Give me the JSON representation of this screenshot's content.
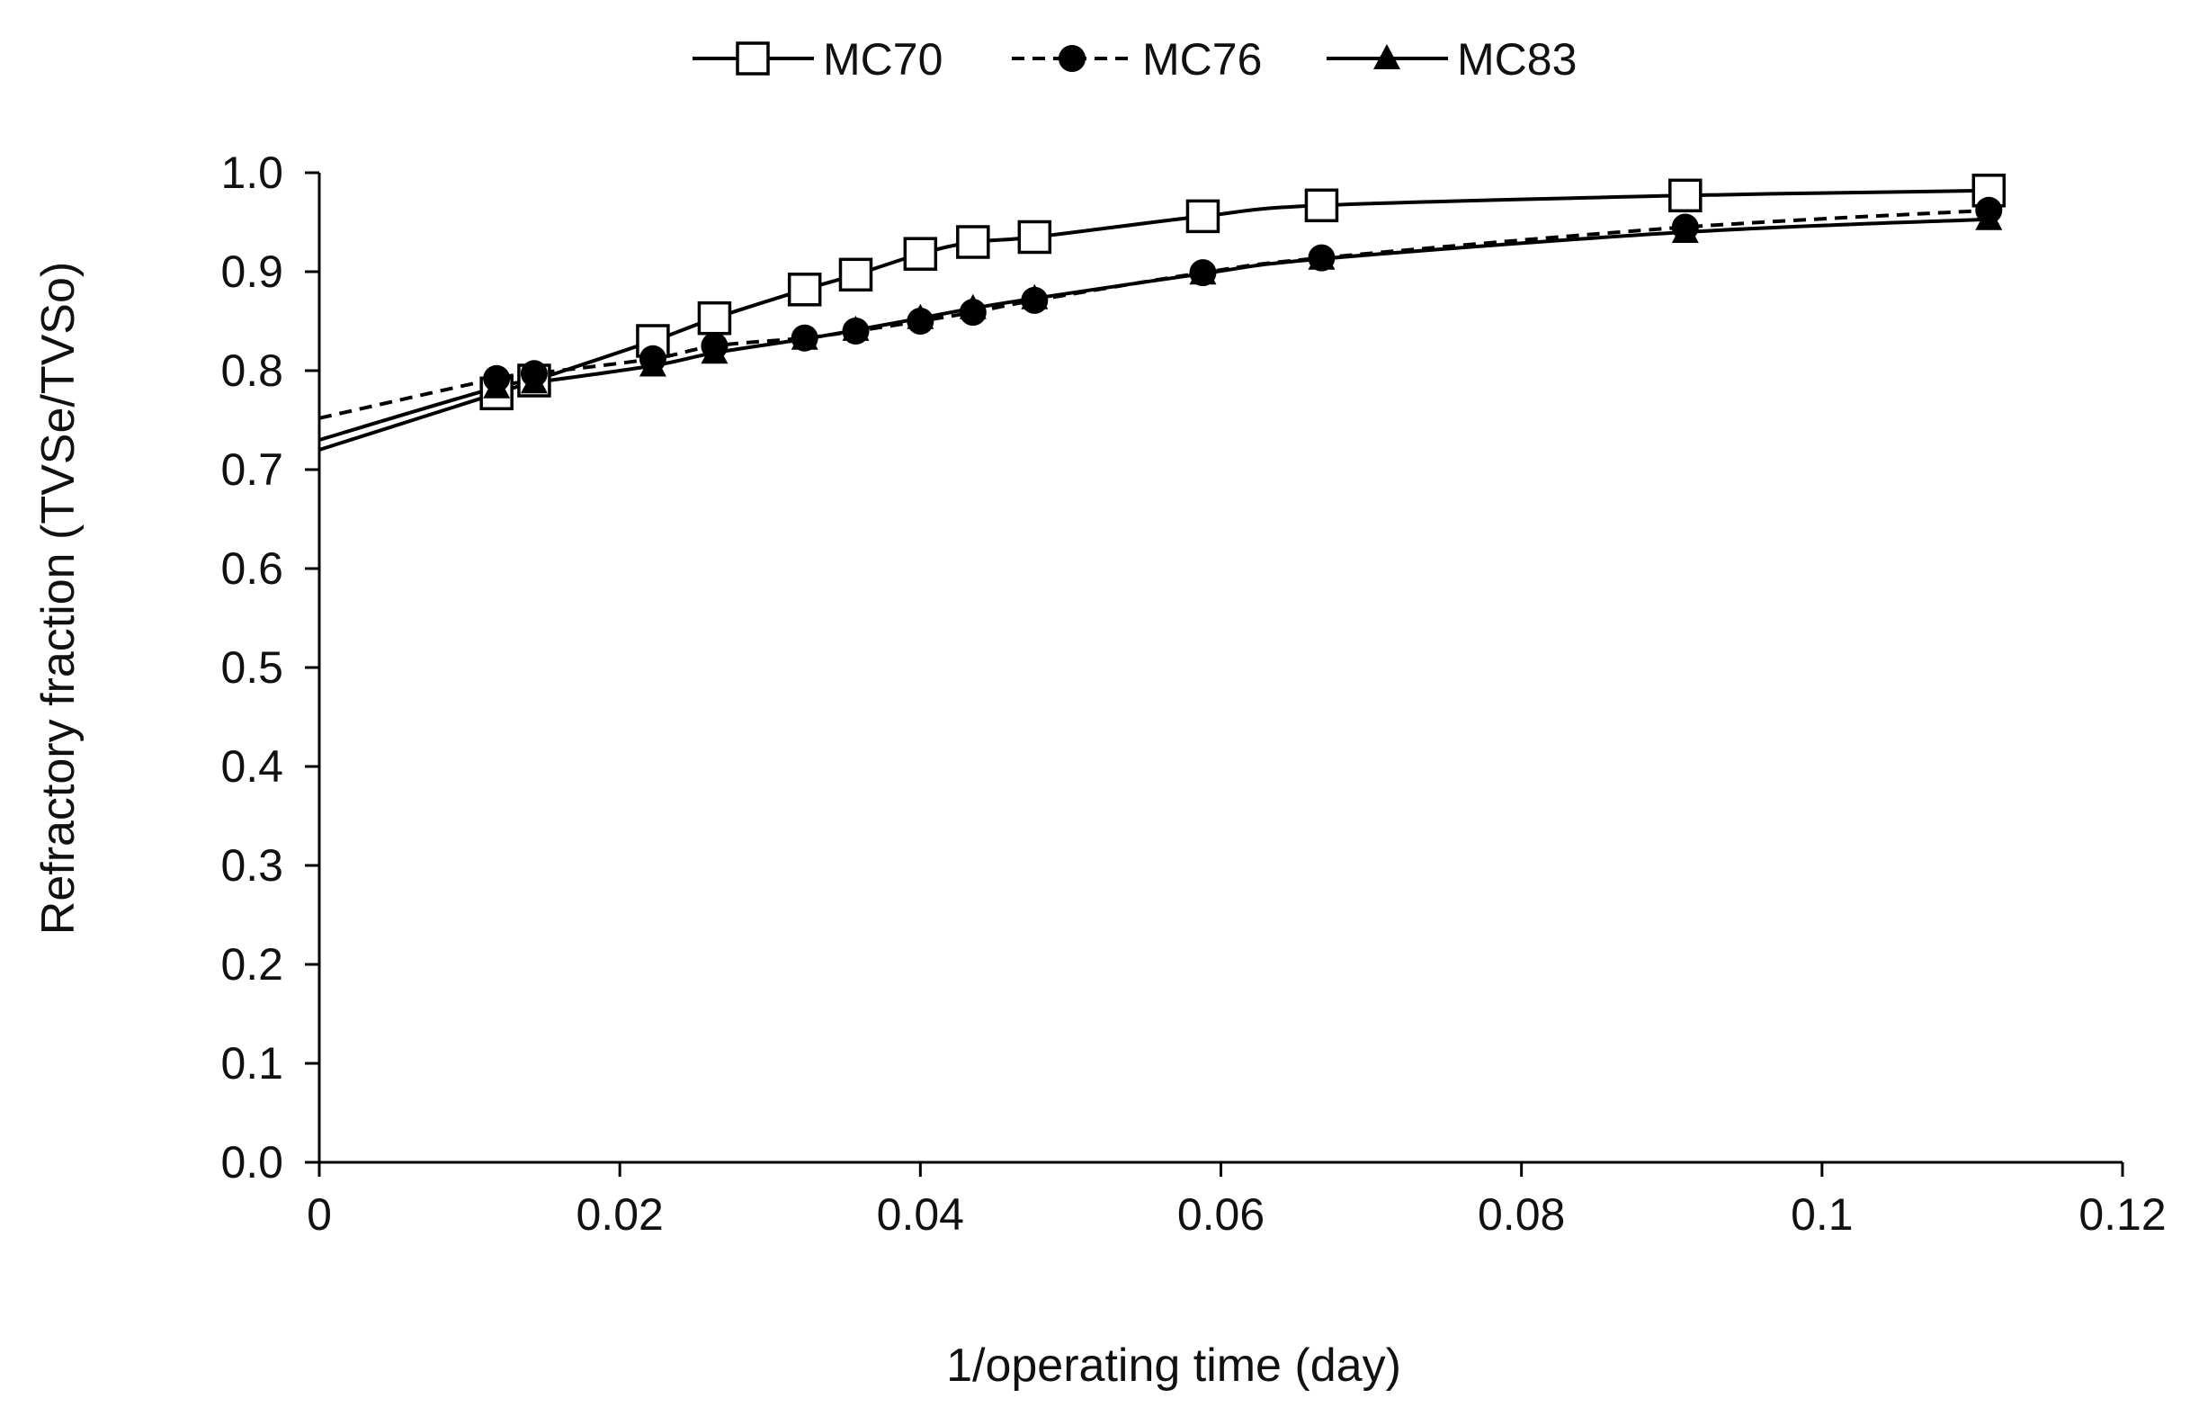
{
  "chart_data": {
    "type": "line",
    "title": "",
    "xlabel": "1/operating time (day)",
    "ylabel": "Refractory fraction (TVSe/TVSo)",
    "xlim": [
      0,
      0.12
    ],
    "ylim": [
      0.0,
      1.0
    ],
    "x_ticks": [
      "0",
      "0.02",
      "0.04",
      "0.06",
      "0.08",
      "0.1",
      "0.12"
    ],
    "y_ticks": [
      "0.0",
      "0.1",
      "0.2",
      "0.3",
      "0.4",
      "0.5",
      "0.6",
      "0.7",
      "0.8",
      "0.9",
      "1.0"
    ],
    "x_tick_values": [
      0,
      0.02,
      0.04,
      0.06,
      0.08,
      0.1,
      0.12
    ],
    "y_tick_values": [
      0.0,
      0.1,
      0.2,
      0.3,
      0.4,
      0.5,
      0.6,
      0.7,
      0.8,
      0.9,
      1.0
    ],
    "grid": false,
    "legend_position": "top-center",
    "series": [
      {
        "name": "MC70",
        "marker": "open-square",
        "line": "solid",
        "color": "#000000",
        "start_y": 0.72,
        "x": [
          0.0118,
          0.0143,
          0.0222,
          0.0263,
          0.0323,
          0.0357,
          0.04,
          0.0435,
          0.0476,
          0.0588,
          0.0667,
          0.0909,
          0.1111
        ],
        "y": [
          0.777,
          0.79,
          0.83,
          0.853,
          0.882,
          0.897,
          0.918,
          0.93,
          0.935,
          0.956,
          0.967,
          0.977,
          0.982
        ]
      },
      {
        "name": "MC76",
        "marker": "filled-circle",
        "line": "dashed",
        "color": "#000000",
        "start_y": 0.752,
        "x": [
          0.0118,
          0.0143,
          0.0222,
          0.0263,
          0.0323,
          0.0357,
          0.04,
          0.0435,
          0.0476,
          0.0588,
          0.0667,
          0.0909,
          0.1111
        ],
        "y": [
          0.792,
          0.797,
          0.812,
          0.825,
          0.833,
          0.84,
          0.85,
          0.859,
          0.871,
          0.899,
          0.914,
          0.945,
          0.962
        ]
      },
      {
        "name": "MC83",
        "marker": "filled-triangle",
        "line": "solid",
        "color": "#000000",
        "start_y": 0.73,
        "x": [
          0.0118,
          0.0143,
          0.0222,
          0.0263,
          0.0323,
          0.0357,
          0.04,
          0.0435,
          0.0476,
          0.0588,
          0.0667,
          0.0909,
          0.1111
        ],
        "y": [
          0.783,
          0.788,
          0.805,
          0.818,
          0.832,
          0.841,
          0.853,
          0.863,
          0.873,
          0.898,
          0.913,
          0.94,
          0.953
        ]
      }
    ]
  }
}
